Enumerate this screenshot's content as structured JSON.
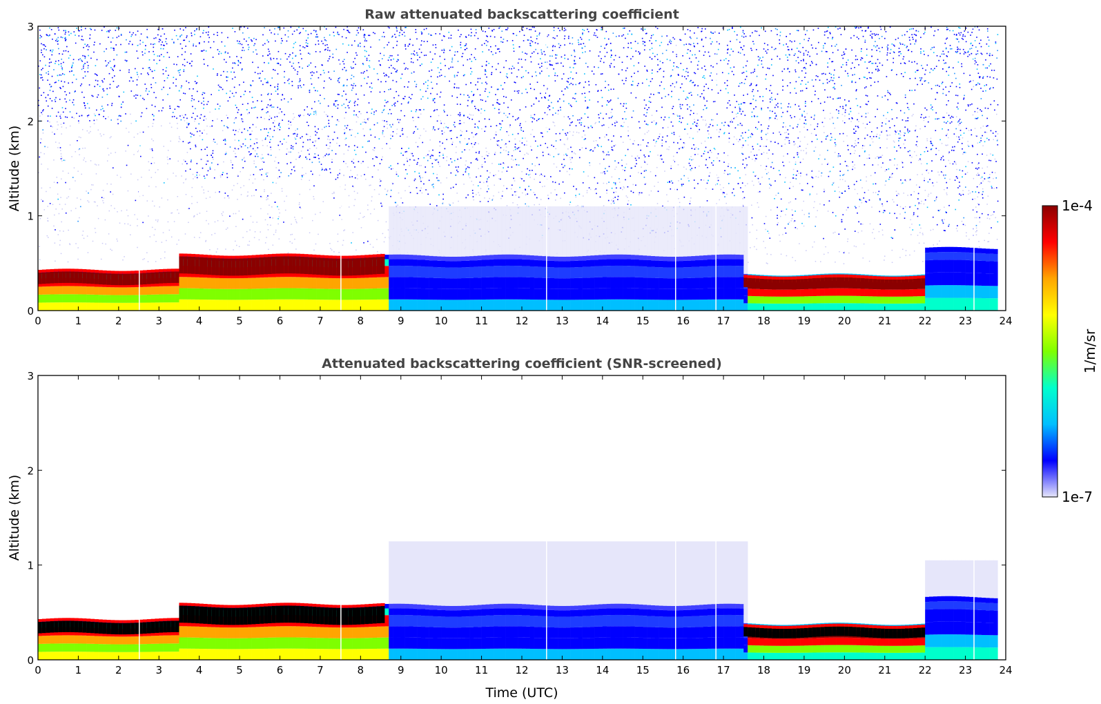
{
  "chart_data": [
    {
      "type": "heatmap",
      "title": "Raw attenuated backscattering coefficient",
      "xlabel": "",
      "ylabel": "Altitude (km)",
      "xlim": [
        0,
        24
      ],
      "ylim": [
        0,
        3
      ],
      "xticks": [
        0,
        1,
        2,
        3,
        4,
        5,
        6,
        7,
        8,
        9,
        10,
        11,
        12,
        13,
        14,
        15,
        16,
        17,
        18,
        19,
        20,
        21,
        22,
        23,
        24
      ],
      "yticks": [
        0,
        1,
        2,
        3
      ],
      "data_end_time": 23.8,
      "segments": [
        {
          "t_start": 0.0,
          "t_end": 3.5,
          "boundary_layer_top_km": 0.42,
          "aerosol_layer_km": [
            0.28,
            0.4
          ]
        },
        {
          "t_start": 3.5,
          "t_end": 8.6,
          "boundary_layer_top_km": 0.58,
          "aerosol_layer_km": [
            0.38,
            0.56
          ]
        },
        {
          "t_start": 8.6,
          "t_end": 17.5,
          "boundary_layer_top_km": 0.58,
          "aerosol_layer_km": []
        },
        {
          "t_start": 17.5,
          "t_end": 22.0,
          "boundary_layer_top_km": 0.38,
          "aerosol_layer_km": [
            0.24,
            0.34
          ]
        },
        {
          "t_start": 22.0,
          "t_end": 23.8,
          "boundary_layer_top_km": 0.66,
          "aerosol_layer_km": []
        }
      ],
      "gaps_utc": [
        2.5,
        7.5,
        12.6,
        15.8,
        16.8,
        23.2
      ],
      "screened": false
    },
    {
      "type": "heatmap",
      "title": "Attenuated backscattering coefficient (SNR-screened)",
      "xlabel": "Time (UTC)",
      "ylabel": "Altitude (km)",
      "xlim": [
        0,
        24
      ],
      "ylim": [
        0,
        3
      ],
      "xticks": [
        0,
        1,
        2,
        3,
        4,
        5,
        6,
        7,
        8,
        9,
        10,
        11,
        12,
        13,
        14,
        15,
        16,
        17,
        18,
        19,
        20,
        21,
        22,
        23,
        24
      ],
      "yticks": [
        0,
        1,
        2,
        3
      ],
      "data_end_time": 23.8,
      "segments": [
        {
          "t_start": 0.0,
          "t_end": 3.5,
          "boundary_layer_top_km": 0.42,
          "aerosol_layer_km": [
            0.28,
            0.4
          ]
        },
        {
          "t_start": 3.5,
          "t_end": 8.6,
          "boundary_layer_top_km": 0.58,
          "aerosol_layer_km": [
            0.38,
            0.56
          ]
        },
        {
          "t_start": 8.6,
          "t_end": 17.5,
          "boundary_layer_top_km": 0.58,
          "aerosol_layer_km": []
        },
        {
          "t_start": 17.5,
          "t_end": 22.0,
          "boundary_layer_top_km": 0.38,
          "aerosol_layer_km": [
            0.24,
            0.34
          ]
        },
        {
          "t_start": 22.0,
          "t_end": 23.8,
          "boundary_layer_top_km": 0.66,
          "aerosol_layer_km": []
        }
      ],
      "gaps_utc": [
        2.5,
        7.5,
        12.6,
        15.8,
        16.8,
        23.2
      ],
      "screened": true,
      "saturated_color": "#000000"
    }
  ],
  "colorbar": {
    "min_label": "1e-7",
    "max_label": "1e-4",
    "unit_label": "1/m/sr",
    "colormap": [
      "#e6e6fa",
      "#0000ff",
      "#00bfff",
      "#00ffcc",
      "#7fff00",
      "#ffff00",
      "#ffa500",
      "#ff0000",
      "#8b0000"
    ]
  }
}
